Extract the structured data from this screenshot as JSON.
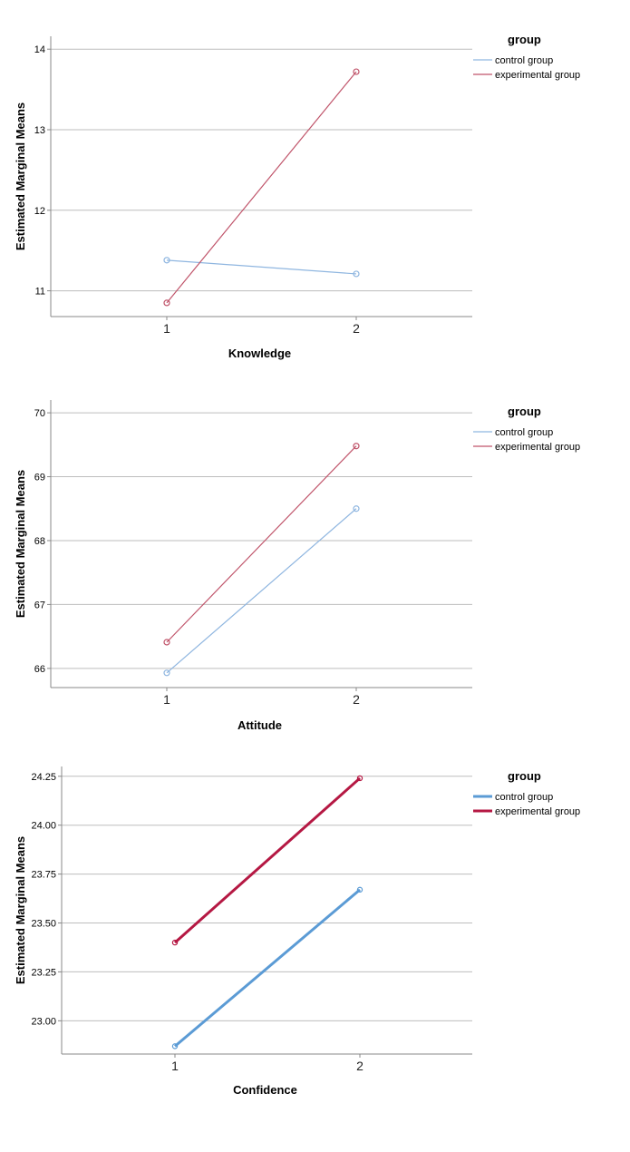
{
  "chart_data": [
    {
      "type": "line",
      "name": "knowledge",
      "xlabel": "Knowledge",
      "ylabel": "Estimated Marginal Means",
      "categories": [
        "1",
        "2"
      ],
      "ylim": [
        10.68,
        14.16
      ],
      "yticks": [
        11,
        12,
        13,
        14
      ],
      "ytick_labels": [
        "11",
        "12",
        "13",
        "14"
      ],
      "grid": true,
      "legend": {
        "title": "group",
        "placement": "top-right"
      },
      "series": [
        {
          "name": "control group",
          "color": "#8fb6e0",
          "values": [
            11.38,
            11.21
          ]
        },
        {
          "name": "experimental group",
          "color": "#c0546a",
          "values": [
            10.85,
            13.72
          ]
        }
      ]
    },
    {
      "type": "line",
      "name": "attitude",
      "xlabel": "Attitude",
      "ylabel": "Estimated Marginal Means",
      "categories": [
        "1",
        "2"
      ],
      "ylim": [
        65.7,
        70.2
      ],
      "yticks": [
        66,
        67,
        68,
        69,
        70
      ],
      "ytick_labels": [
        "66",
        "67",
        "68",
        "69",
        "70"
      ],
      "grid": true,
      "legend": {
        "title": "group",
        "placement": "top-right"
      },
      "series": [
        {
          "name": "control group",
          "color": "#8fb6e0",
          "values": [
            65.93,
            68.5
          ]
        },
        {
          "name": "experimental group",
          "color": "#c0546a",
          "values": [
            66.41,
            69.48
          ]
        }
      ]
    },
    {
      "type": "line",
      "name": "confidence",
      "xlabel": "Confidence",
      "ylabel": "Estimated Marginal Means",
      "categories": [
        "1",
        "2"
      ],
      "ylim": [
        22.83,
        24.3
      ],
      "yticks": [
        23.0,
        23.25,
        23.5,
        23.75,
        24.0,
        24.25
      ],
      "ytick_labels": [
        "23.00",
        "23.25",
        "23.50",
        "23.75",
        "24.00",
        "24.25"
      ],
      "grid": true,
      "legend": {
        "title": "group",
        "placement": "top-right"
      },
      "series": [
        {
          "name": "control group",
          "color": "#5b9bd5",
          "values": [
            22.87,
            23.67
          ]
        },
        {
          "name": "experimental group",
          "color": "#b51843",
          "values": [
            23.4,
            24.24
          ]
        }
      ]
    }
  ]
}
